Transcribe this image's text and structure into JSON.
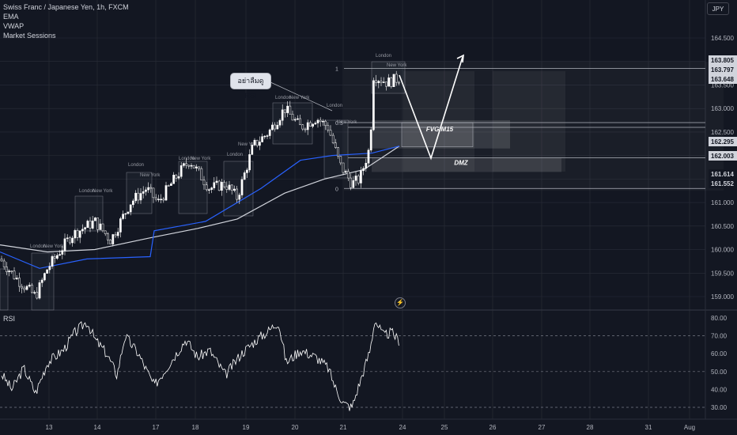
{
  "header": {
    "symbol_title": "Swiss Franc / Japanese Yen, 1h, FXCM",
    "indicators": [
      "EMA",
      "VWAP",
      "Market Sessions"
    ],
    "currency_button": "JPY"
  },
  "rsi_panel": {
    "label": "RSI"
  },
  "annotation": {
    "text": "อย่าลืมดู RSI"
  },
  "colors": {
    "background": "#131722",
    "bull_candle": "#ffffff",
    "bear_candle": "#ffffff",
    "ema": "#d1d4dc",
    "vwap": "#2962ff",
    "rsi": "#ffffff",
    "grid": "#2a2e39",
    "session_box": "#787b86",
    "price_label_bg": "#d1d4dc"
  },
  "chart_data": [
    {
      "type": "candlestick",
      "title": "Swiss Franc / Japanese Yen, 1h, FXCM",
      "ylim": [
        158.8,
        165.2
      ],
      "y_ticks": [
        159.0,
        159.5,
        160.0,
        160.5,
        161.0,
        161.5,
        162.0,
        162.5,
        163.0,
        163.5,
        164.0,
        164.5
      ],
      "x_ticks": [
        "13",
        "14",
        "17",
        "18",
        "19",
        "20",
        "21",
        "24",
        "25",
        "26",
        "27",
        "28",
        "31",
        "Aug"
      ],
      "price_labels": [
        "163.805",
        "163.797",
        "163.648",
        "162.295",
        "162.003",
        "161.614",
        "161.552"
      ],
      "ema_points": [
        [
          0,
          160.1
        ],
        [
          60,
          159.95
        ],
        [
          120,
          160.0
        ],
        [
          190,
          160.25
        ],
        [
          250,
          160.45
        ],
        [
          300,
          160.65
        ],
        [
          360,
          161.2
        ],
        [
          410,
          161.5
        ],
        [
          460,
          161.7
        ],
        [
          505,
          162.2
        ]
      ],
      "vwap_points": [
        [
          0,
          159.95
        ],
        [
          50,
          159.6
        ],
        [
          110,
          159.8
        ],
        [
          190,
          159.85
        ],
        [
          195,
          160.4
        ],
        [
          260,
          160.6
        ],
        [
          330,
          161.3
        ],
        [
          380,
          161.9
        ],
        [
          420,
          162.0
        ],
        [
          470,
          162.05
        ],
        [
          505,
          162.2
        ]
      ],
      "fib_levels": [
        {
          "label": "1",
          "price": 163.85
        },
        {
          "label": "0.5",
          "price": 162.7
        },
        {
          "label": "0",
          "price": 161.3
        }
      ],
      "zones": [
        {
          "label": "FVG M15",
          "top": 162.75,
          "bottom": 162.15
        },
        {
          "label": "DMZ",
          "top": 161.95,
          "bottom": 161.65
        }
      ],
      "session_labels": [
        "London",
        "New York",
        "London",
        "New York",
        "London",
        "New York",
        "London",
        "New York",
        "London",
        "New York",
        "London",
        "New York",
        "London",
        "New York",
        "London",
        "New York"
      ],
      "projection": [
        [
          0,
          163.6
        ],
        [
          1,
          162.05
        ],
        [
          2,
          164.0
        ]
      ]
    },
    {
      "type": "line",
      "title": "RSI",
      "ylim": [
        28,
        82
      ],
      "y_ticks": [
        30.0,
        40.0,
        50.0,
        60.0,
        70.0,
        80.0
      ],
      "guide_levels": [
        70,
        50,
        30
      ]
    }
  ]
}
